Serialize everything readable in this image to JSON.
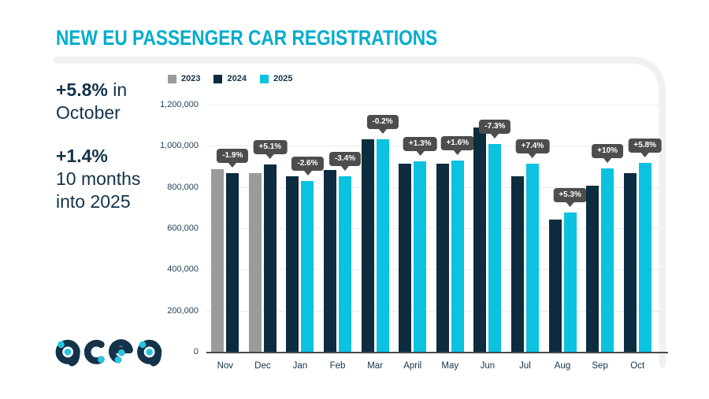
{
  "page": {
    "title": "NEW EU PASSENGER CAR REGISTRATIONS"
  },
  "stats": {
    "primary": {
      "value": "+5.8%",
      "suffix": " in",
      "line2": "October"
    },
    "secondary": {
      "value": "+1.4%",
      "line2": "10 months",
      "line3": "into 2025"
    }
  },
  "logo": {
    "name": "acea"
  },
  "colors": {
    "accent_cyan": "#00ADCE",
    "navy_text": "#13334A",
    "bar_gray": "#9B9B9B",
    "bar_navy": "#0D2C3F",
    "bar_cyan": "#0BC2E0",
    "tooltip_bg": "#4D4D4D",
    "gridline": "#EBEBEB",
    "card_border": "#F1F1F1"
  },
  "chart_data": {
    "type": "bar",
    "title": "NEW EU PASSENGER CAR REGISTRATIONS",
    "categories": [
      "Nov",
      "Dec",
      "Jan",
      "Feb",
      "Mar",
      "April",
      "May",
      "Jun",
      "Jul",
      "Aug",
      "Sep",
      "Oct"
    ],
    "series": [
      {
        "name": "2023",
        "color": "#9B9B9B",
        "values": [
          885000,
          866000,
          null,
          null,
          null,
          null,
          null,
          null,
          null,
          null,
          null,
          null
        ]
      },
      {
        "name": "2024",
        "color": "#0D2C3F",
        "values": [
          868000,
          910000,
          853000,
          884000,
          1032000,
          914000,
          912000,
          1090000,
          852000,
          644000,
          808000,
          866000
        ]
      },
      {
        "name": "2025",
        "color": "#0BC2E0",
        "values": [
          null,
          null,
          831000,
          854000,
          1030000,
          925000,
          927000,
          1010000,
          915000,
          678000,
          889000,
          916000
        ]
      }
    ],
    "change_labels": [
      "-1.9%",
      "+5.1%",
      "-2.6%",
      "-3.4%",
      "-0.2%",
      "+1.3%",
      "+1.6%",
      "-7.3%",
      "+7.4%",
      "+5.3%",
      "+10%",
      "+5.8%"
    ],
    "xlabel": "",
    "ylabel": "",
    "ylim": [
      0,
      1200000
    ],
    "ytick_step": 200000,
    "ytick_labels": [
      "0",
      "200,000",
      "400,000",
      "600,000",
      "800,000",
      "1,000,000",
      "1,200,000"
    ],
    "grid": true,
    "legend_position": "top-left",
    "tooltip_bg": "#4D4D4D"
  }
}
